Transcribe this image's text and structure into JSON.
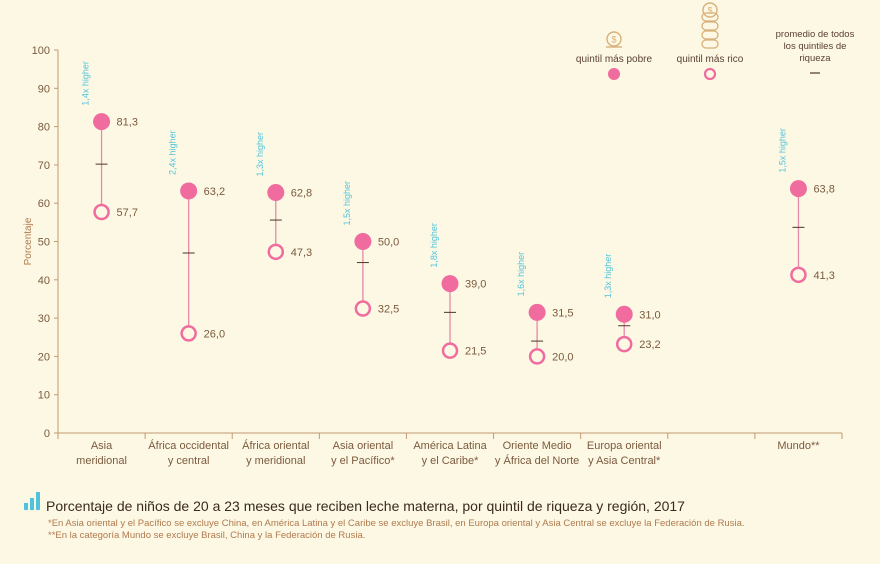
{
  "chart_data": {
    "type": "dot-range",
    "ylabel": "Porcentaje",
    "ylim": [
      0,
      100
    ],
    "yticks": [
      0,
      10,
      20,
      30,
      40,
      50,
      60,
      70,
      80,
      90,
      100
    ],
    "categories": [
      {
        "lines": [
          "Asia",
          "meridional"
        ],
        "poorest": 57.7,
        "richest": 81.3,
        "average": 70.2,
        "ratio": "1,4x higher",
        "poorest_label": "57,7",
        "richest_label": "81,3"
      },
      {
        "lines": [
          "África occidental",
          "y central"
        ],
        "poorest": 26.0,
        "richest": 63.2,
        "average": 47.0,
        "ratio": "2,4x higher",
        "poorest_label": "26,0",
        "richest_label": "63,2"
      },
      {
        "lines": [
          "África oriental",
          "y meridional"
        ],
        "poorest": 47.3,
        "richest": 62.8,
        "average": 55.6,
        "ratio": "1,3x higher",
        "poorest_label": "47,3",
        "richest_label": "62,8"
      },
      {
        "lines": [
          "Asia oriental",
          "y el Pacífico*"
        ],
        "poorest": 32.5,
        "richest": 50.0,
        "average": 44.5,
        "ratio": "1,5x higher",
        "poorest_label": "32,5",
        "richest_label": "50,0"
      },
      {
        "lines": [
          "América Latina",
          "y el Caribe*"
        ],
        "poorest": 21.5,
        "richest": 39.0,
        "average": 31.5,
        "ratio": "1,8x higher",
        "poorest_label": "21,5",
        "richest_label": "39,0"
      },
      {
        "lines": [
          "Oriente Medio",
          "y África del Norte"
        ],
        "poorest": 20.0,
        "richest": 31.5,
        "average": 24.0,
        "ratio": "1,6x higher",
        "poorest_label": "20,0",
        "richest_label": "31,5"
      },
      {
        "lines": [
          "Europa oriental",
          "y Asia Central*"
        ],
        "poorest": 23.2,
        "richest": 31.0,
        "average": 28.0,
        "ratio": "1,3x higher",
        "poorest_label": "23,2",
        "richest_label": "31,0"
      },
      {
        "lines": [],
        "empty": true
      },
      {
        "lines": [
          "Mundo**"
        ],
        "poorest": 41.3,
        "richest": 63.8,
        "average": 53.7,
        "ratio": "1,5x higher",
        "poorest_label": "41,3",
        "richest_label": "63,8"
      }
    ],
    "legend": {
      "poorest": "quintil más pobre",
      "richest": "quintil más rico",
      "average_lines": [
        "promedio de todos",
        "los quintiles de",
        "riqueza"
      ]
    },
    "colors": {
      "richest_fill": "#f06b9e",
      "poorest_stroke": "#f06b9e",
      "connector": "#e58aa8",
      "average": "#4a3526",
      "ratio": "#4fc3dc",
      "axis": "#c49a72",
      "tick_text": "#7a5a3e",
      "value_text": "#7a5a3e",
      "category_text": "#7a5a3e",
      "coin": "#d8b07a"
    }
  },
  "caption": "Porcentaje de niños de 20 a 23 meses que reciben leche materna, por quintil de riqueza y región, 2017",
  "footnotes": [
    "*En Asia oriental y el Pacífico se excluye China, en América Latina y el Caribe se excluye Brasil, en Europa oriental y Asia Central se excluye la Federación de Rusia.",
    "**En la categoría Mundo se excluye Brasil, China y la Federación de Rusia."
  ]
}
